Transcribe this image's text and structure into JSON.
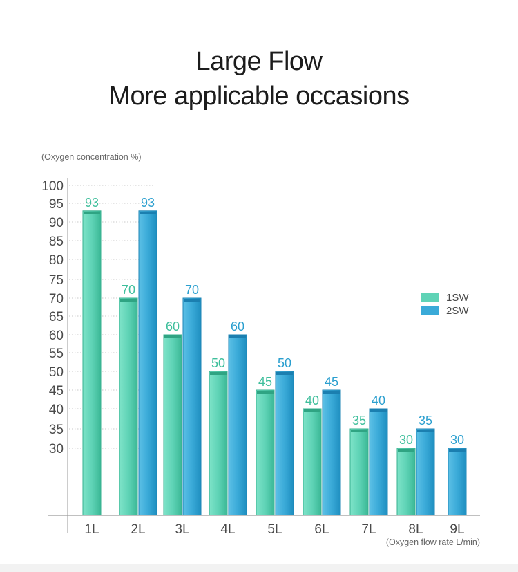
{
  "title_lines": [
    "Large Flow",
    "More applicable occasions"
  ],
  "chart_data": {
    "type": "bar",
    "ylabel": "(Oxygen concentration %)",
    "xlabel": "(Oxygen flow rate L/min)",
    "categories": [
      "1L",
      "2L",
      "3L",
      "4L",
      "5L",
      "6L",
      "7L",
      "8L",
      "9L"
    ],
    "yticks": [
      100,
      95,
      90,
      85,
      80,
      75,
      70,
      65,
      60,
      55,
      50,
      45,
      40,
      35,
      30
    ],
    "series": [
      {
        "name": "1SW",
        "color": "#5fd3b6",
        "values": [
          93,
          70,
          60,
          50,
          45,
          40,
          35,
          30,
          null
        ]
      },
      {
        "name": "2SW",
        "color": "#3aaad8",
        "values": [
          null,
          93,
          70,
          60,
          50,
          45,
          40,
          35,
          30
        ]
      }
    ],
    "legend_position": "right"
  }
}
